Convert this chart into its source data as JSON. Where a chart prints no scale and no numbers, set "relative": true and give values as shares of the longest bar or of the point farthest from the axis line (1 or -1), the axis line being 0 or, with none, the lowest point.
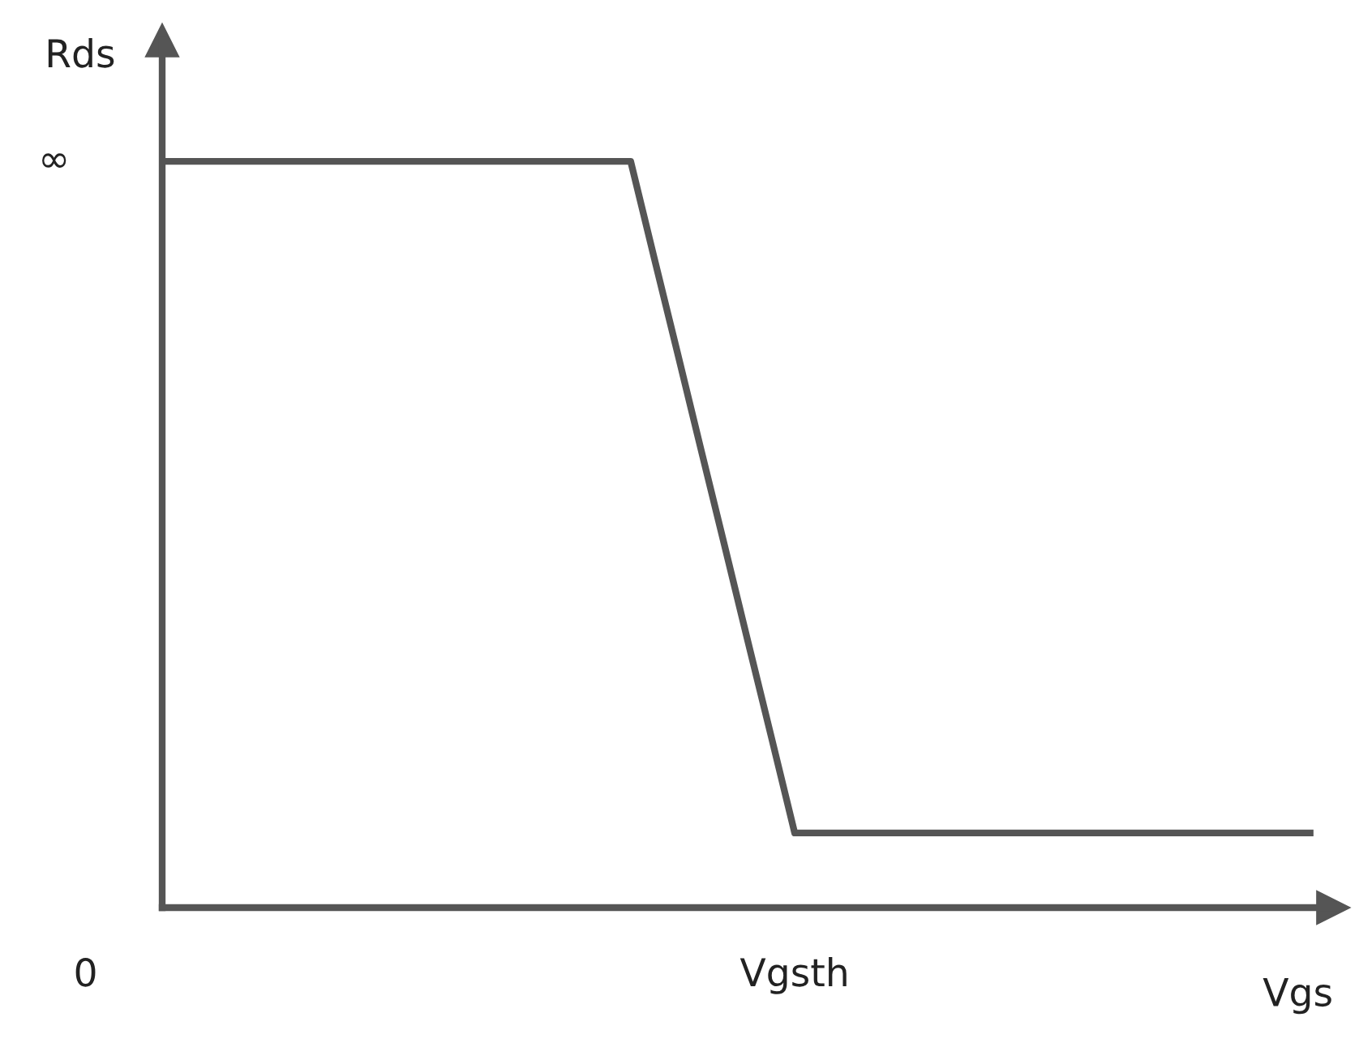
{
  "chart_data": {
    "type": "line",
    "xlabel": "Vgs",
    "ylabel": "Rds",
    "relative": true,
    "categories": [
      null,
      null,
      null,
      null,
      null,
      null,
      null,
      null,
      null,
      null,
      null,
      null,
      null,
      null,
      null,
      null,
      null,
      null,
      null,
      null,
      null,
      null,
      null,
      null,
      null,
      null,
      null,
      null,
      null,
      null,
      null,
      null,
      null,
      null,
      null,
      null,
      null,
      null,
      null,
      null,
      null,
      null,
      null,
      null,
      null,
      null,
      null,
      null,
      null,
      null
    ],
    "series": [
      {
        "color": "#555555",
        "values": [
          1,
          1,
          1,
          1,
          1,
          1,
          1,
          1,
          1,
          1,
          1,
          1,
          1,
          1,
          1,
          1,
          1,
          1,
          1,
          1,
          1,
          0.871,
          0.743,
          0.614,
          0.486,
          0.357,
          0.229,
          0.1,
          0.1,
          0.1,
          0.1,
          0.1,
          0.1,
          0.1,
          0.1,
          0.1,
          0.1,
          0.1,
          0.1,
          0.1,
          0.1,
          0.1,
          0.1,
          0.1,
          0.1,
          0.1,
          0.1,
          0.1,
          0.1,
          0.1
        ]
      }
    ],
    "annotations": [
      "∞",
      "0",
      "Vgsth"
    ],
    "marker": "none",
    "line_style": "solid"
  }
}
